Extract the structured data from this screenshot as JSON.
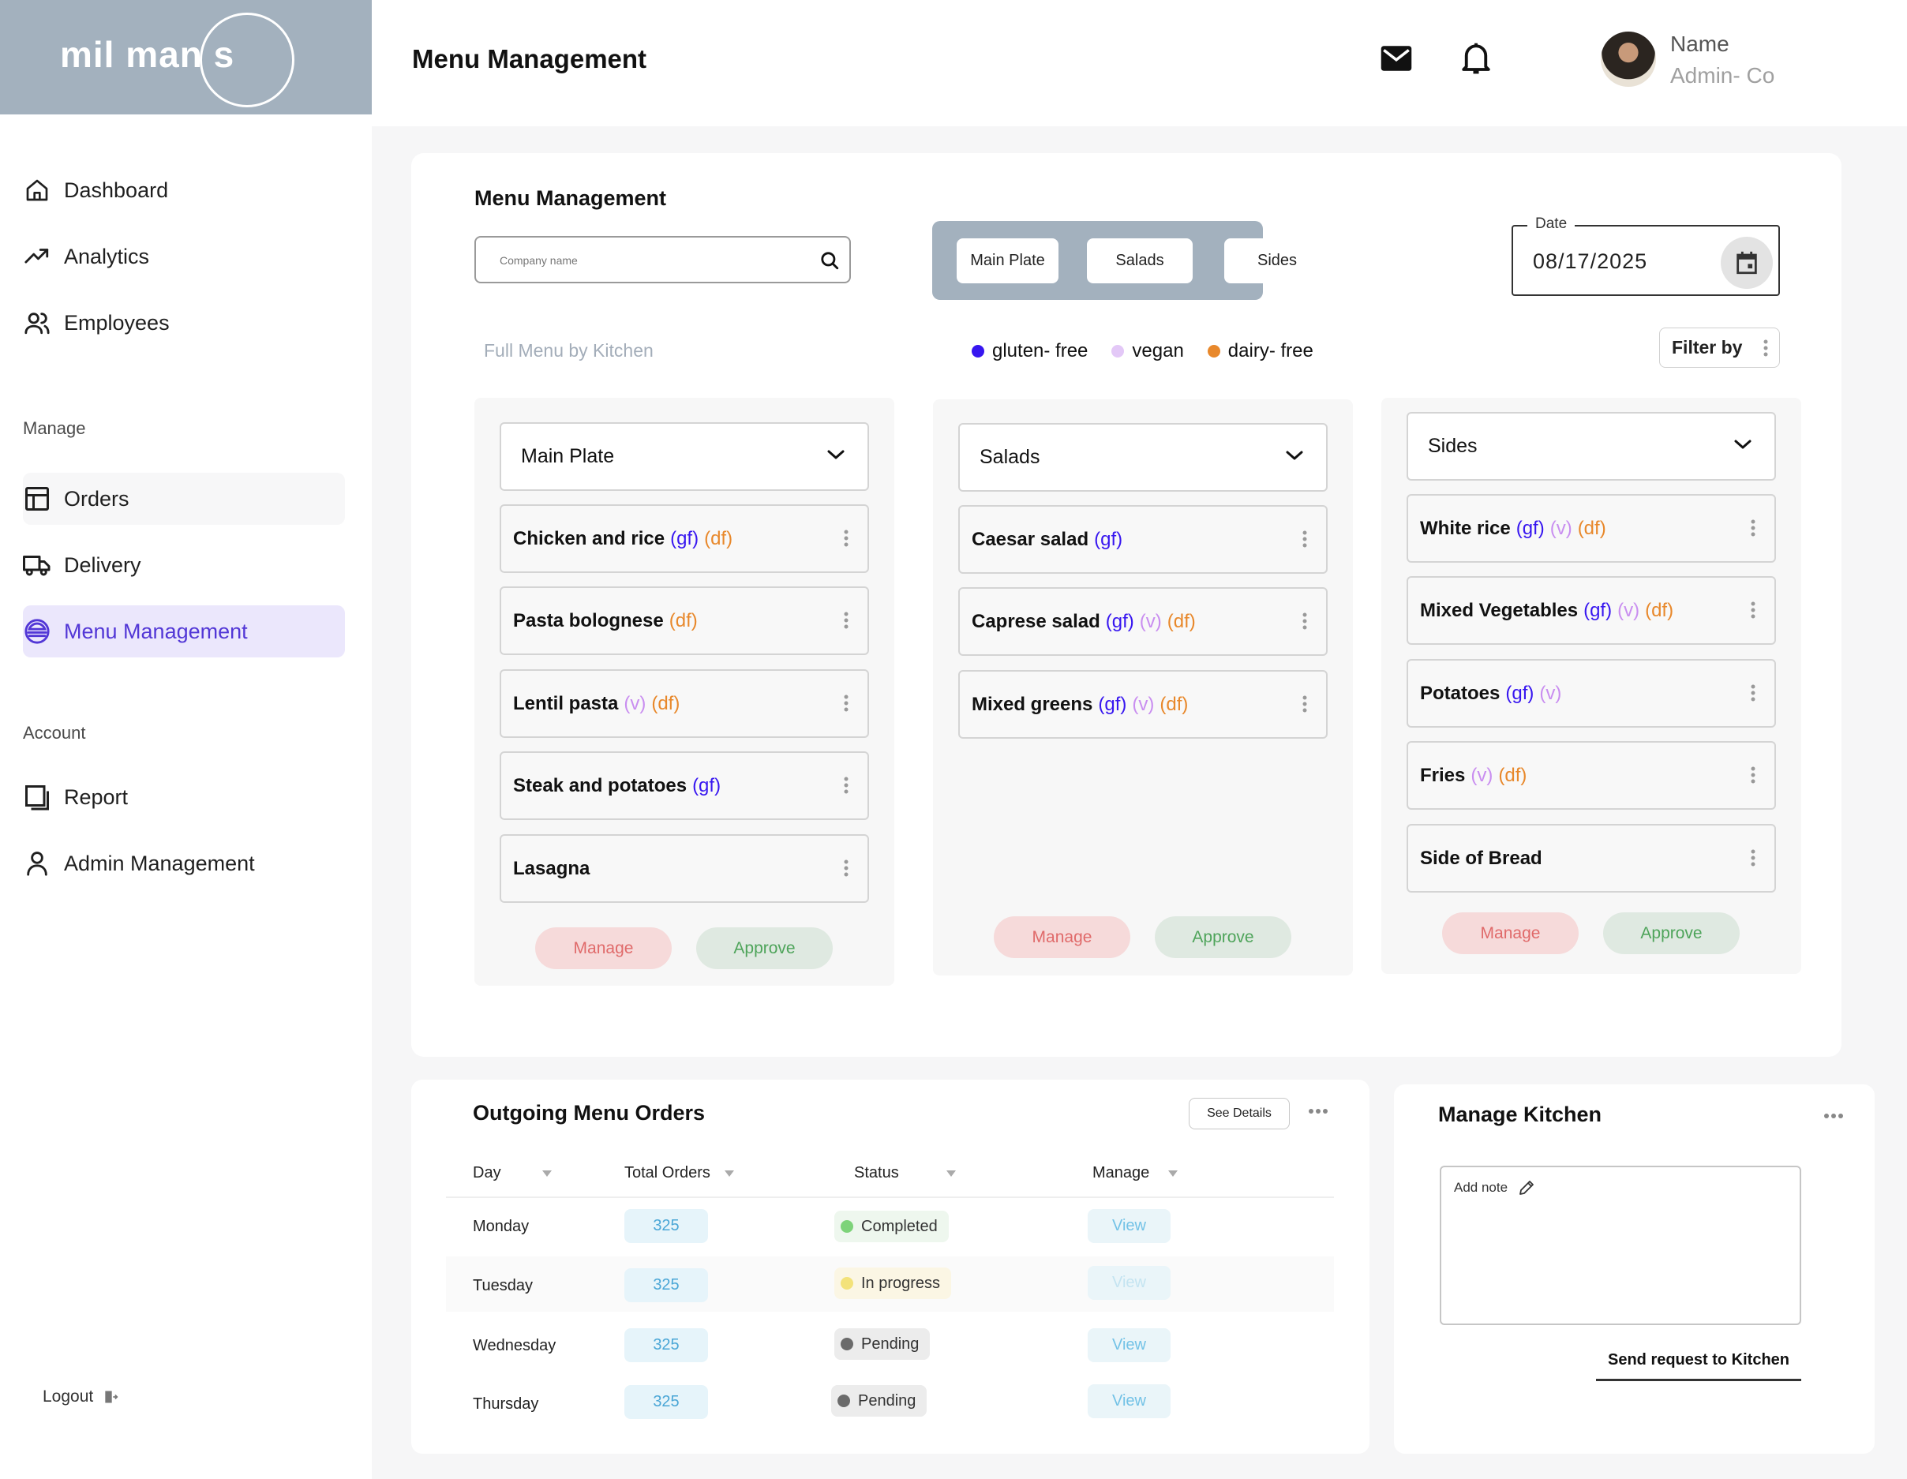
{
  "brand": {
    "logo_text": "mil man s"
  },
  "sidebar": {
    "items_top": [
      {
        "label": "Dashboard",
        "icon": "home-icon"
      },
      {
        "label": "Analytics",
        "icon": "trend-icon"
      },
      {
        "label": "Employees",
        "icon": "users-icon"
      }
    ],
    "manage_title": "Manage",
    "items_manage": [
      {
        "label": "Orders",
        "icon": "layout-icon"
      },
      {
        "label": "Delivery",
        "icon": "truck-icon"
      },
      {
        "label": "Menu Management",
        "icon": "burger-icon",
        "active": true
      }
    ],
    "account_title": "Account",
    "items_account": [
      {
        "label": "Report",
        "icon": "report-icon"
      },
      {
        "label": "Admin Management",
        "icon": "user-icon"
      }
    ],
    "logout": "Logout"
  },
  "header": {
    "title": "Menu Management",
    "user": {
      "name": "Name",
      "role": "Admin- Co"
    }
  },
  "menu": {
    "title": "Menu Management",
    "search_placeholder": "Company name",
    "tabs": [
      "Main Plate",
      "Salads",
      "Sides"
    ],
    "date_label": "Date",
    "date_value": "08/17/2025",
    "subtitle": "Full Menu by Kitchen",
    "legend": [
      {
        "label": "gluten- free",
        "color": "#3716f0"
      },
      {
        "label": "vegan",
        "color": "#e3c8f7"
      },
      {
        "label": "dairy- free",
        "color": "#e8882b"
      }
    ],
    "filter_label": "Filter by",
    "columns": [
      {
        "title": "Main Plate",
        "dishes": [
          {
            "name": "Chicken and rice",
            "gf": "(gf)",
            "v": "",
            "df": "(df)"
          },
          {
            "name": "Pasta bolognese",
            "gf": "",
            "v": "",
            "df": "(df)"
          },
          {
            "name": "Lentil pasta",
            "gf": "",
            "v": "(v)",
            "df": "(df)"
          },
          {
            "name": "Steak and potatoes",
            "gf": "(gf)",
            "v": "",
            "df": ""
          },
          {
            "name": "Lasagna",
            "gf": "",
            "v": "",
            "df": ""
          }
        ],
        "manage_label": "Manage",
        "approve_label": "Approve"
      },
      {
        "title": "Salads",
        "dishes": [
          {
            "name": "Caesar salad",
            "gf": "(gf)",
            "v": "",
            "df": ""
          },
          {
            "name": "Caprese salad",
            "gf": "(gf)",
            "v": "(v)",
            "df": "(df)"
          },
          {
            "name": "Mixed greens",
            "gf": "(gf)",
            "v": "(v)",
            "df": "(df)"
          }
        ],
        "manage_label": "Manage",
        "approve_label": "Approve"
      },
      {
        "title": "Sides",
        "dishes": [
          {
            "name": "White rice",
            "gf": "(gf)",
            "v": "(v)",
            "df": "(df)"
          },
          {
            "name": "Mixed Vegetables",
            "gf": "(gf)",
            "v": "(v)",
            "df": "(df)"
          },
          {
            "name": "Potatoes",
            "gf": "(gf)",
            "v": "(v)",
            "df": ""
          },
          {
            "name": "Fries",
            "gf": "",
            "v": "(v)",
            "df": "(df)"
          },
          {
            "name": "Side of Bread",
            "gf": "",
            "v": "",
            "df": ""
          }
        ],
        "manage_label": "Manage",
        "approve_label": "Approve"
      }
    ]
  },
  "orders": {
    "title": "Outgoing Menu Orders",
    "see_details": "See Details",
    "columns": [
      "Day",
      "Total Orders",
      "Status",
      "Manage"
    ],
    "rows": [
      {
        "day": "Monday",
        "total": "325",
        "status": "Completed",
        "status_color": "#7ed37a",
        "chip_bg": "#eef7ee",
        "view": "View"
      },
      {
        "day": "Tuesday",
        "total": "325",
        "status": "In progress",
        "status_color": "#f3e27a",
        "chip_bg": "#fbf6e4",
        "view": "View"
      },
      {
        "day": "Wednesday",
        "total": "325",
        "status": "Pending",
        "status_color": "#6b6b6b",
        "chip_bg": "#ececec",
        "view": "View"
      },
      {
        "day": "Thursday",
        "total": "325",
        "status": "Pending",
        "status_color": "#6b6b6b",
        "chip_bg": "#ececec",
        "view": "View"
      }
    ]
  },
  "kitchen": {
    "title": "Manage Kitchen",
    "note_label": "Add note",
    "send_label": "Send request to Kitchen"
  }
}
